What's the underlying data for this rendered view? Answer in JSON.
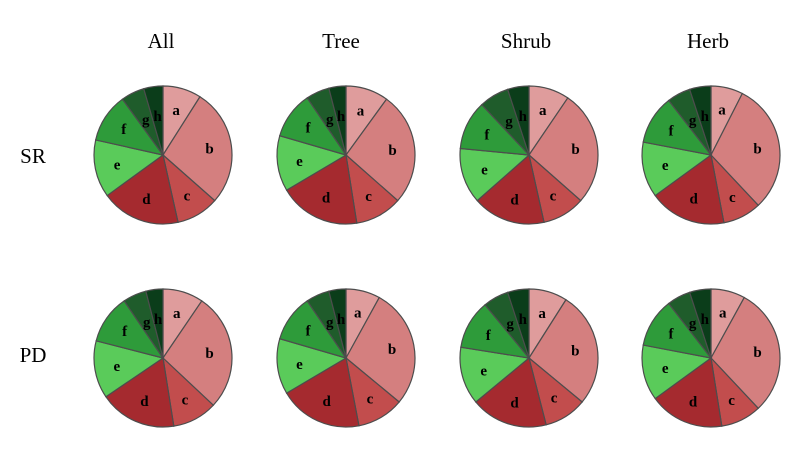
{
  "chart_data": {
    "type": "pie",
    "columns": [
      "All",
      "Tree",
      "Shrub",
      "Herb"
    ],
    "rows": [
      "SR",
      "PD"
    ],
    "slice_labels": [
      "a",
      "b",
      "c",
      "d",
      "e",
      "f",
      "g",
      "h"
    ],
    "colors": {
      "a": "#df9c9c",
      "b": "#d47f7f",
      "c": "#c24d4d",
      "d": "#a52a2f",
      "e": "#5acb5a",
      "f": "#2e9b3a",
      "g": "#1f5c2b",
      "h": "#0b3d1a"
    },
    "pies": [
      {
        "row": "SR",
        "column": "All",
        "values": [
          9.0,
          27.5,
          10.0,
          18.5,
          13.5,
          11.5,
          5.5,
          4.5
        ]
      },
      {
        "row": "SR",
        "column": "Tree",
        "values": [
          10.0,
          26.5,
          11.0,
          19.0,
          13.0,
          11.0,
          5.5,
          4.0
        ]
      },
      {
        "row": "SR",
        "column": "Shrub",
        "values": [
          9.5,
          27.0,
          10.0,
          17.0,
          13.0,
          11.5,
          7.0,
          5.0
        ]
      },
      {
        "row": "SR",
        "column": "Herb",
        "values": [
          7.5,
          30.5,
          9.0,
          18.0,
          13.0,
          11.5,
          5.5,
          5.0
        ]
      },
      {
        "row": "PD",
        "column": "All",
        "values": [
          9.5,
          27.5,
          10.5,
          18.0,
          13.5,
          11.5,
          5.5,
          4.0
        ]
      },
      {
        "row": "PD",
        "column": "Tree",
        "values": [
          8.0,
          28.0,
          11.0,
          19.5,
          13.0,
          11.0,
          5.5,
          4.0
        ]
      },
      {
        "row": "PD",
        "column": "Shrub",
        "values": [
          9.0,
          27.0,
          10.0,
          18.0,
          13.5,
          11.5,
          6.0,
          5.0
        ]
      },
      {
        "row": "PD",
        "column": "Herb",
        "values": [
          8.0,
          30.0,
          9.5,
          17.5,
          13.0,
          11.5,
          5.5,
          5.0
        ]
      }
    ]
  }
}
